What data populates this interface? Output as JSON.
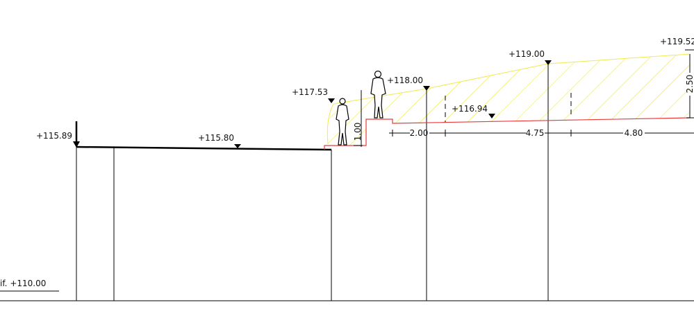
{
  "elevations": [
    "+115.89",
    "+115.80",
    "+117.53",
    "+118.00",
    "+116.94",
    "+119.00",
    "+119.52"
  ],
  "dimensions": [
    "1.00",
    "2.00",
    "4.75",
    "4.80",
    "2.50"
  ],
  "reference": "if. +110.00"
}
